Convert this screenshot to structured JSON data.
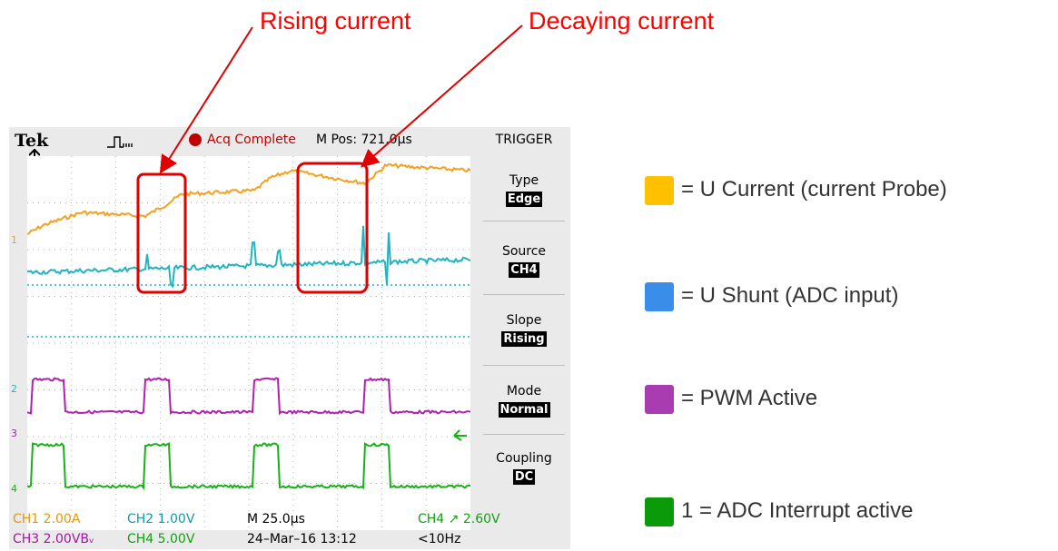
{
  "annotations": {
    "rising": "Rising current",
    "decaying": "Decaying current"
  },
  "scope": {
    "brand": "Tek",
    "acq_status": "Acq Complete",
    "mpos": "M Pos: 721.0µs",
    "menu_title": "TRIGGER",
    "menu": [
      {
        "label": "Type",
        "value": "Edge"
      },
      {
        "label": "Source",
        "value": "CH4"
      },
      {
        "label": "Slope",
        "value": "Rising"
      },
      {
        "label": "Mode",
        "value": "Normal"
      },
      {
        "label": "Coupling",
        "value": "DC"
      }
    ],
    "status_row1": {
      "ch1": "CH1  2.00A",
      "ch2": "CH2  1.00V",
      "timebase": "M 25.0µs",
      "trigger": "CH4 ↗ 2.60V"
    },
    "status_row2": {
      "ch3": "CH3  2.00VBᵥ",
      "ch4": "CH4  5.00V",
      "date": "24–Mar–16 13:12",
      "freq": "<10Hz"
    },
    "channel_markers": [
      "1",
      "2",
      "3",
      "4"
    ],
    "colors": {
      "ch1": "#f5a020",
      "ch2": "#1eb4c0",
      "ch3": "#b020b0",
      "ch4": "#18b018",
      "highlight": "#e00000"
    }
  },
  "legend": [
    {
      "color": "#ffc000",
      "text": "= U Current (current Probe)"
    },
    {
      "color": "#3a8de8",
      "text": "= U Shunt (ADC input)"
    },
    {
      "color": "#a93cb0",
      "text": "= PWM Active"
    },
    {
      "color": "#0a9a0a",
      "text": "1 = ADC Interrupt active"
    }
  ]
}
